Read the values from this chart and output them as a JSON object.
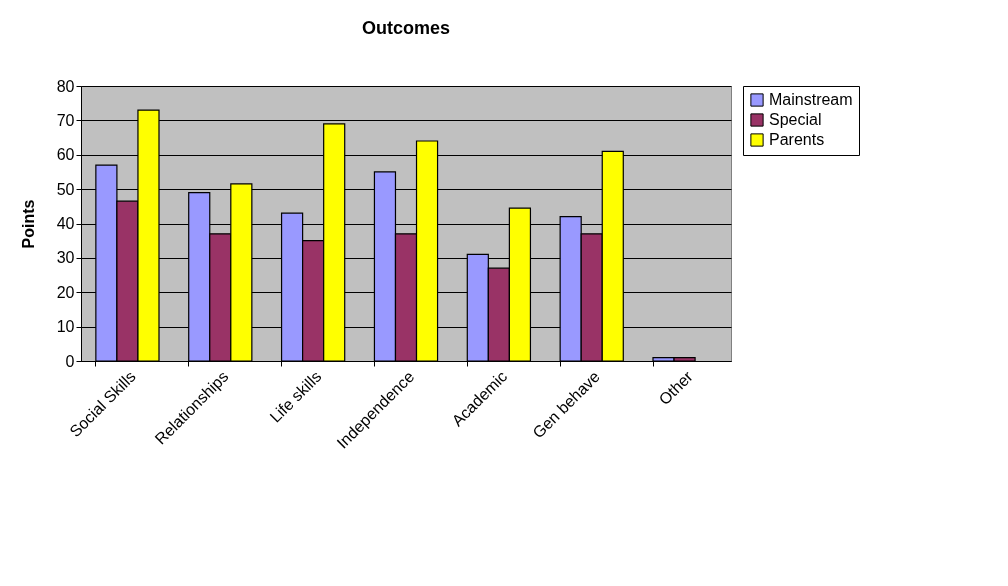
{
  "chart_data": {
    "type": "bar",
    "title": "Outcomes",
    "ylabel": "Points",
    "categories": [
      "Social Skills",
      "Relationships",
      "Life skills",
      "Independence",
      "Academic",
      "Gen behave",
      "Other"
    ],
    "series": [
      {
        "name": "Mainstream",
        "color": "#9999ff",
        "values": [
          57,
          49,
          43,
          55,
          31,
          42,
          1
        ]
      },
      {
        "name": "Special",
        "color": "#993366",
        "values": [
          46.5,
          37,
          35,
          37,
          27,
          37,
          1
        ]
      },
      {
        "name": "Parents",
        "color": "#ffff00",
        "values": [
          73,
          51.5,
          69,
          64,
          44.5,
          61,
          null
        ]
      }
    ],
    "ylim": [
      0,
      80
    ],
    "yticks": [
      0,
      10,
      20,
      30,
      40,
      50,
      60,
      70,
      80
    ],
    "grid": "y",
    "legend": "right"
  }
}
